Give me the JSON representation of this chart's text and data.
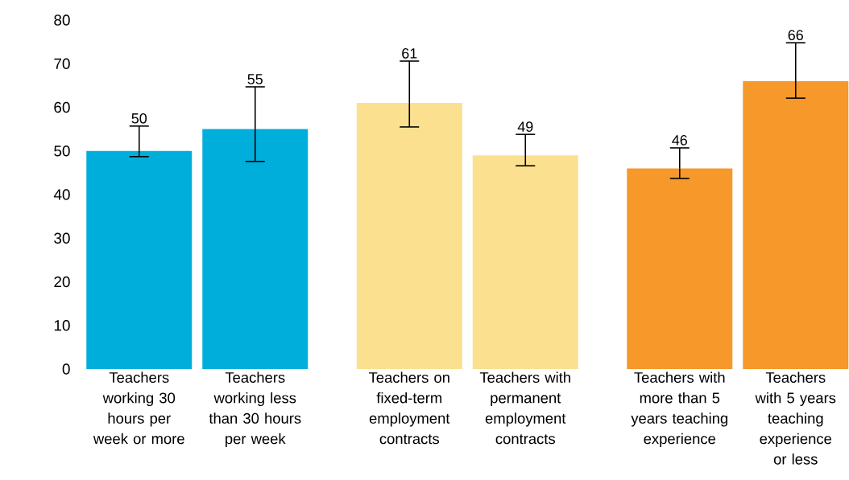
{
  "chart_data": {
    "type": "bar",
    "categories": [
      "Teachers working 30 hours per week or more",
      "Teachers working less than 30 hours per week",
      "Teachers on fixed-term employment contracts",
      "Teachers with permanent employment contracts",
      "Teachers with more than 5 years teaching experience",
      "Teachers with 5 years teaching experience or less"
    ],
    "values": [
      50,
      55,
      61,
      49,
      46,
      66
    ],
    "value_labels": [
      "50",
      "55",
      "61",
      "49",
      "46",
      "66"
    ],
    "errors": [
      [
        48.7,
        55.7
      ],
      [
        47.6,
        64.7
      ],
      [
        55.5,
        70.6
      ],
      [
        46.6,
        53.8
      ],
      [
        43.7,
        50.7
      ],
      [
        62.1,
        74.8
      ]
    ],
    "colors": [
      "#00aedb",
      "#00aedb",
      "#fbe08f",
      "#fbe08f",
      "#f6982a",
      "#f6982a"
    ],
    "ylim": [
      0,
      80
    ],
    "yticks": [
      0,
      10,
      20,
      30,
      40,
      50,
      60,
      70,
      80
    ],
    "grid": false,
    "legend": false
  }
}
